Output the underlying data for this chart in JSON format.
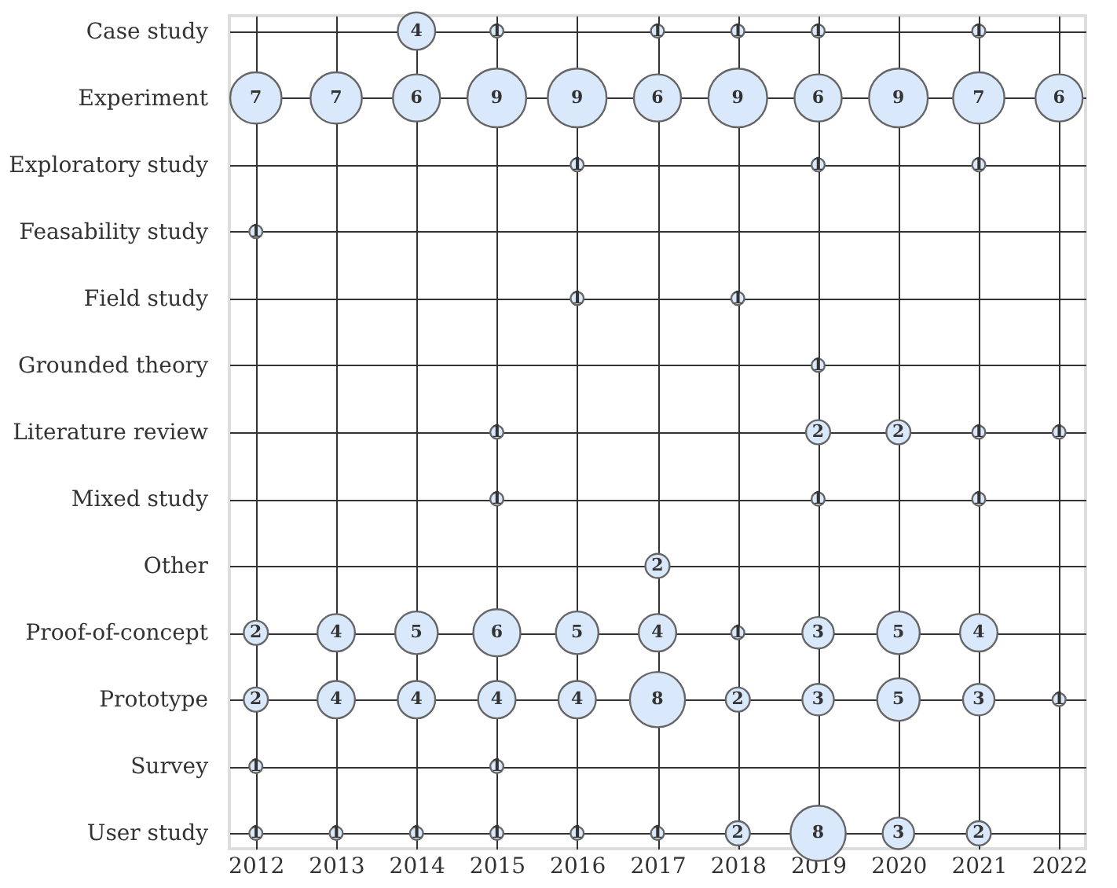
{
  "chart_data": {
    "type": "heatmap",
    "categories": [
      "2012",
      "2013",
      "2014",
      "2015",
      "2016",
      "2017",
      "2018",
      "2019",
      "2020",
      "2021",
      "2022"
    ],
    "y_categories": [
      "Case study",
      "Experiment",
      "Exploratory study",
      "Feasability study",
      "Field study",
      "Grounded theory",
      "Literature review",
      "Mixed study",
      "Other",
      "Proof-of-concept",
      "Prototype",
      "Survey",
      "User study"
    ],
    "cells": [
      [
        null,
        null,
        4,
        1,
        null,
        1,
        1,
        1,
        null,
        1,
        null
      ],
      [
        7,
        7,
        6,
        9,
        9,
        6,
        9,
        6,
        9,
        7,
        6
      ],
      [
        null,
        null,
        null,
        null,
        1,
        null,
        null,
        1,
        null,
        1,
        null
      ],
      [
        1,
        null,
        null,
        null,
        null,
        null,
        null,
        null,
        null,
        null,
        null
      ],
      [
        null,
        null,
        null,
        null,
        1,
        null,
        1,
        null,
        null,
        null,
        null
      ],
      [
        null,
        null,
        null,
        null,
        null,
        null,
        null,
        1,
        null,
        null,
        null
      ],
      [
        null,
        null,
        null,
        1,
        null,
        null,
        null,
        2,
        2,
        1,
        1
      ],
      [
        null,
        null,
        null,
        1,
        null,
        null,
        null,
        1,
        null,
        1,
        null
      ],
      [
        null,
        null,
        null,
        null,
        null,
        2,
        null,
        null,
        null,
        null,
        null
      ],
      [
        2,
        4,
        5,
        6,
        5,
        4,
        1,
        3,
        5,
        4,
        null
      ],
      [
        2,
        4,
        4,
        4,
        4,
        8,
        2,
        3,
        5,
        3,
        1
      ],
      [
        1,
        null,
        null,
        1,
        null,
        null,
        null,
        null,
        null,
        null,
        null
      ],
      [
        1,
        1,
        1,
        1,
        1,
        1,
        2,
        8,
        3,
        2,
        null
      ]
    ],
    "color": "#dae8fc",
    "grid": true,
    "data_labels": true
  }
}
